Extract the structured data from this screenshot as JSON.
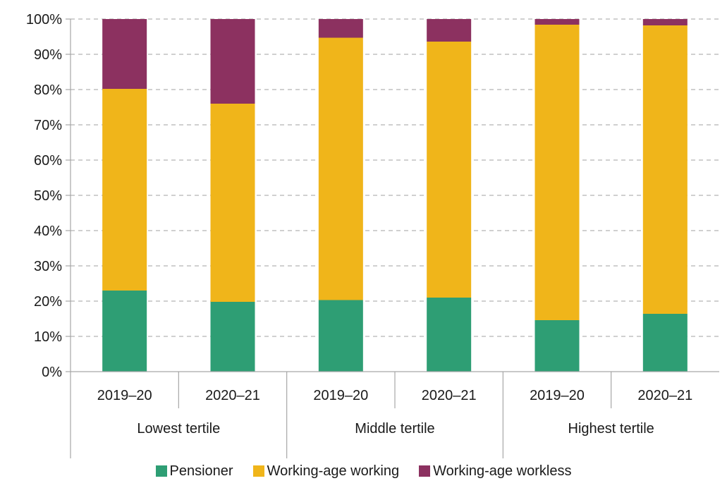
{
  "chart_data": {
    "type": "bar",
    "stacked": true,
    "groups": [
      "Lowest tertile",
      "Middle tertile",
      "Highest tertile"
    ],
    "categories": [
      "2019–20",
      "2020–21",
      "2019–20",
      "2020–21",
      "2019–20",
      "2020–21"
    ],
    "series": [
      {
        "name": "Pensioner",
        "color": "#2e9e74",
        "values": [
          23.0,
          19.8,
          20.3,
          21.0,
          14.6,
          16.4
        ]
      },
      {
        "name": "Working-age working",
        "color": "#f0b51a",
        "values": [
          57.2,
          56.2,
          74.4,
          72.6,
          83.8,
          81.8
        ]
      },
      {
        "name": "Working-age workless",
        "color": "#8c3160",
        "values": [
          19.8,
          24.0,
          5.3,
          6.4,
          1.6,
          1.8
        ]
      }
    ],
    "y_ticks": [
      "0%",
      "10%",
      "20%",
      "30%",
      "40%",
      "50%",
      "60%",
      "70%",
      "80%",
      "90%",
      "100%"
    ],
    "ylim": [
      0,
      100
    ],
    "grid": true,
    "legend_position": "bottom"
  }
}
